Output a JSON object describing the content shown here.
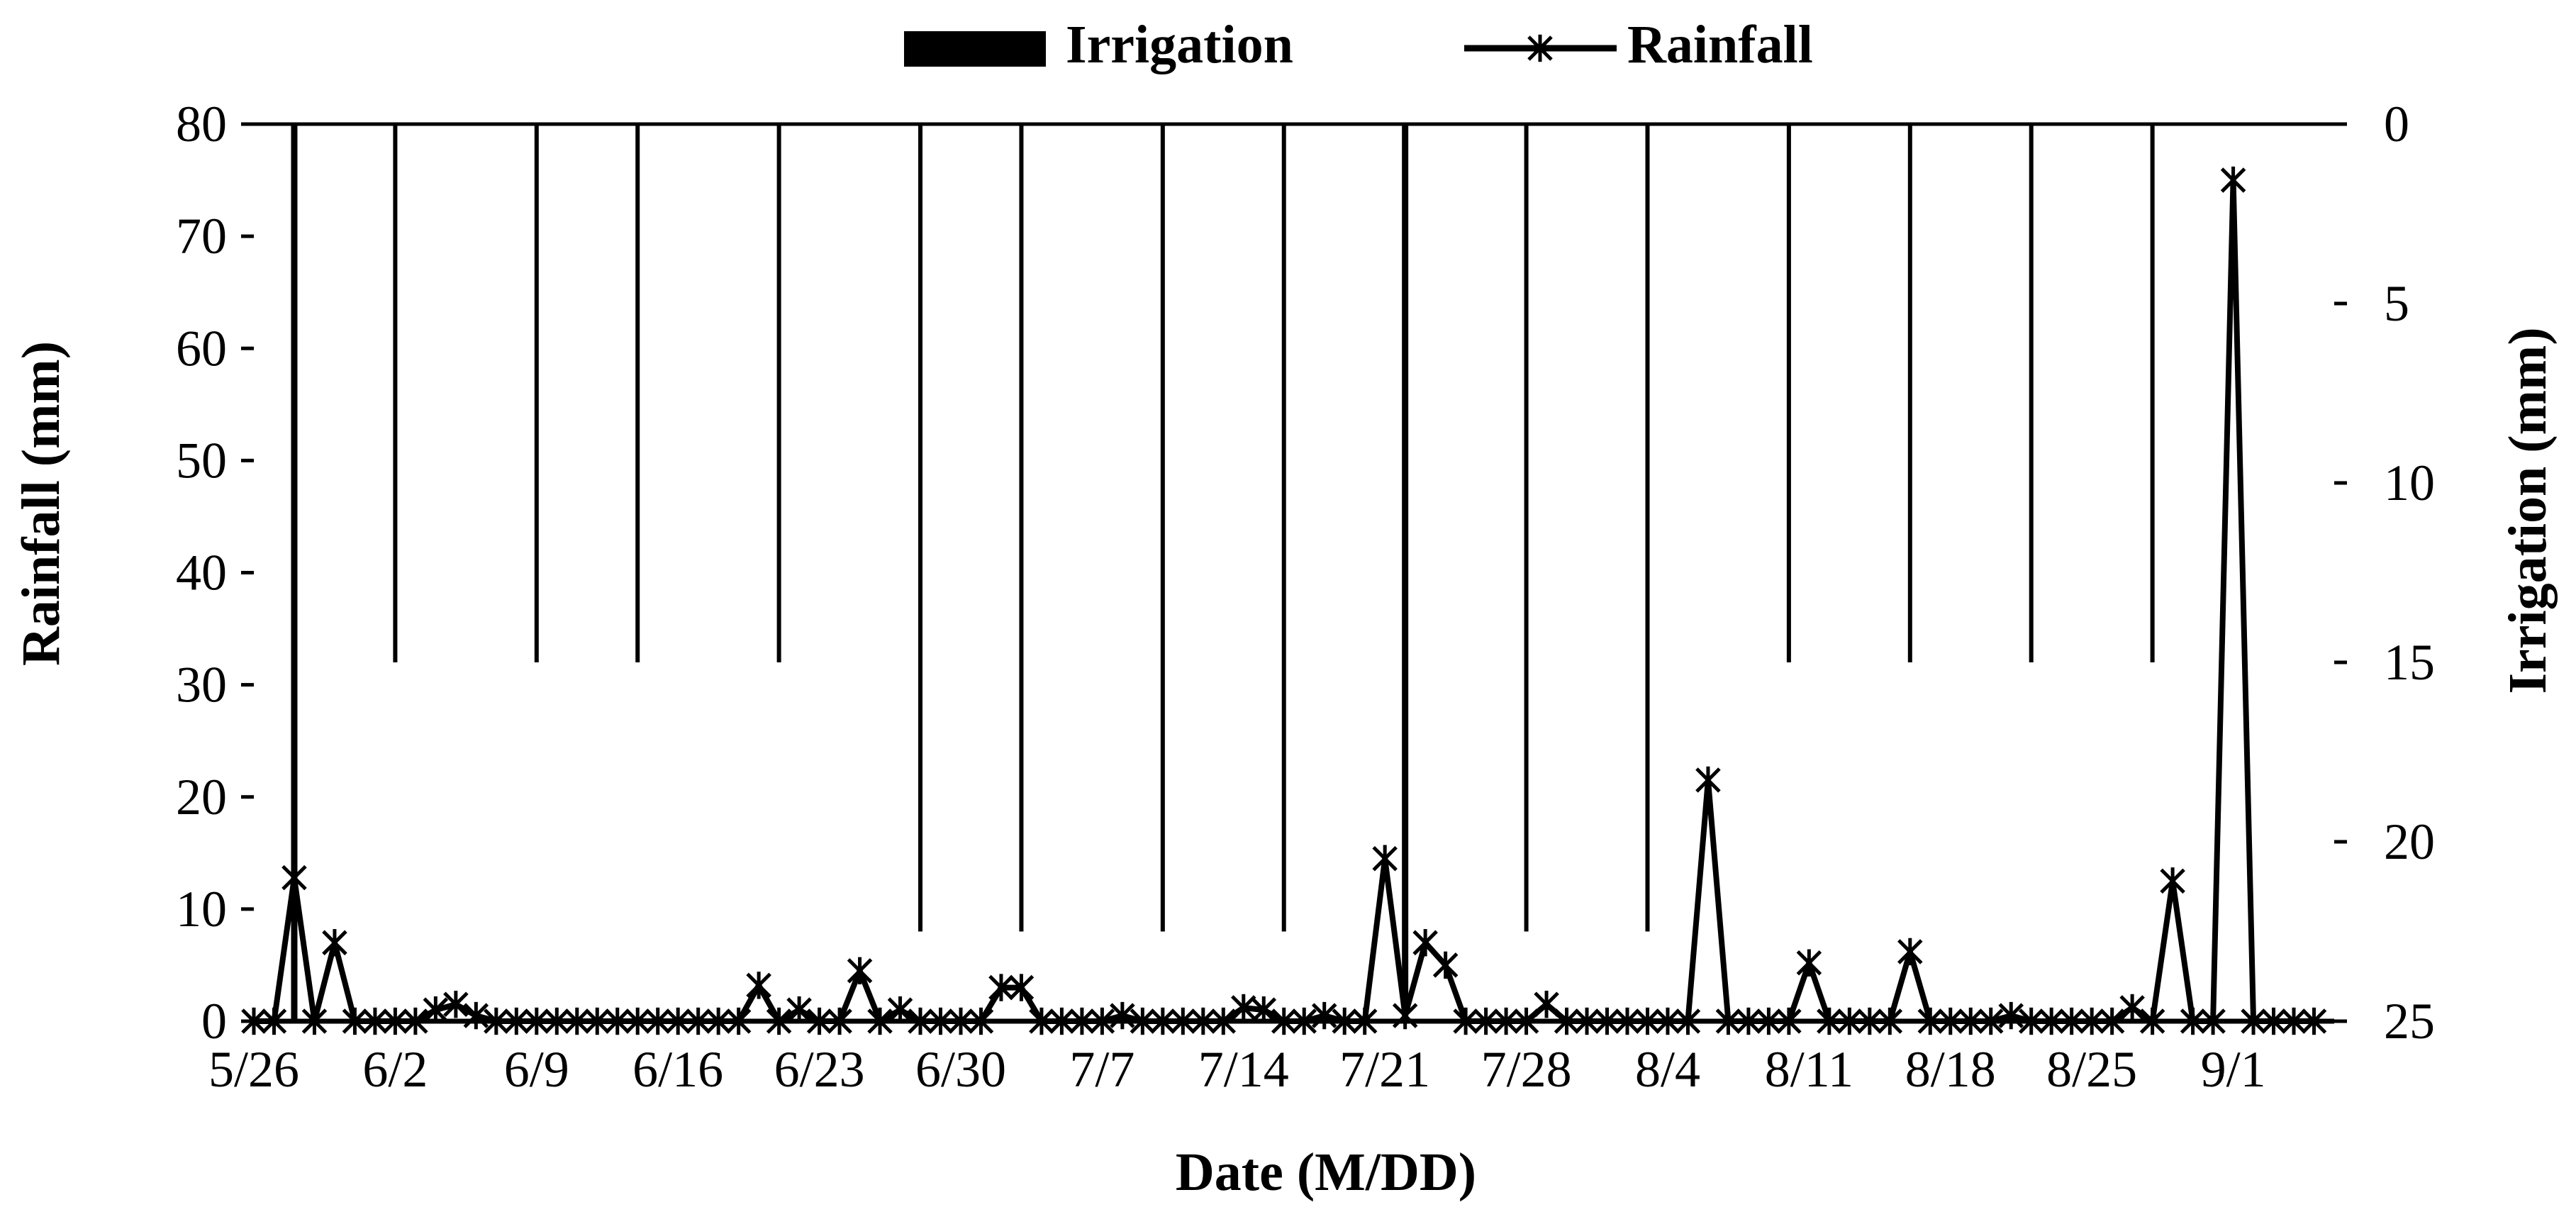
{
  "chart_data": {
    "type": "bar+line",
    "title": "",
    "xlabel": "Date (M/DD)",
    "ylabel_left": "Rainfall (mm)",
    "ylabel_right": "Irrigation (mm)",
    "ylim_left": [
      0,
      80
    ],
    "yticks_left": [
      "0",
      "10",
      "20",
      "30",
      "40",
      "50",
      "60",
      "70",
      "80"
    ],
    "ylim_right_inverted": [
      0,
      25
    ],
    "yticks_right": [
      "0",
      "5",
      "10",
      "15",
      "20",
      "25"
    ],
    "x_tick_labels": [
      "5/26",
      "6/2",
      "6/9",
      "6/16",
      "6/23",
      "6/30",
      "7/7",
      "7/14",
      "7/21",
      "7/28",
      "8/4",
      "8/11",
      "8/18",
      "8/25",
      "9/1"
    ],
    "grid": false,
    "legend": {
      "placement": "top-center",
      "entries": [
        {
          "label": "Irrigation",
          "marker": "bar"
        },
        {
          "label": "Rainfall",
          "marker": "line-star"
        }
      ]
    },
    "series": [
      {
        "name": "Irrigation",
        "kind": "bar",
        "axis": "right",
        "points": [
          {
            "x": "5/28",
            "y": 25
          },
          {
            "x": "6/2",
            "y": 15
          },
          {
            "x": "6/9",
            "y": 15
          },
          {
            "x": "6/14",
            "y": 15
          },
          {
            "x": "6/21",
            "y": 15
          },
          {
            "x": "6/28",
            "y": 22.5
          },
          {
            "x": "7/3",
            "y": 22.5
          },
          {
            "x": "7/10",
            "y": 22.5
          },
          {
            "x": "7/16",
            "y": 22.5
          },
          {
            "x": "7/22",
            "y": 25
          },
          {
            "x": "7/28",
            "y": 22.5
          },
          {
            "x": "8/3",
            "y": 22.5
          },
          {
            "x": "8/10",
            "y": 15
          },
          {
            "x": "8/16",
            "y": 15
          },
          {
            "x": "8/22",
            "y": 15
          },
          {
            "x": "8/28",
            "y": 15
          }
        ]
      },
      {
        "name": "Rainfall",
        "kind": "line",
        "axis": "left",
        "marker": "star",
        "points": [
          {
            "x": "5/26",
            "y": 0
          },
          {
            "x": "5/27",
            "y": 0
          },
          {
            "x": "5/28",
            "y": 12.8
          },
          {
            "x": "5/29",
            "y": 0
          },
          {
            "x": "5/30",
            "y": 7
          },
          {
            "x": "5/31",
            "y": 0
          },
          {
            "x": "6/1",
            "y": 0
          },
          {
            "x": "6/2",
            "y": 0
          },
          {
            "x": "6/3",
            "y": 0
          },
          {
            "x": "6/4",
            "y": 1
          },
          {
            "x": "6/5",
            "y": 1.5
          },
          {
            "x": "6/6",
            "y": 0.5
          },
          {
            "x": "6/7",
            "y": 0
          },
          {
            "x": "6/8",
            "y": 0
          },
          {
            "x": "6/9",
            "y": 0
          },
          {
            "x": "6/10",
            "y": 0
          },
          {
            "x": "6/11",
            "y": 0
          },
          {
            "x": "6/12",
            "y": 0
          },
          {
            "x": "6/13",
            "y": 0
          },
          {
            "x": "6/14",
            "y": 0
          },
          {
            "x": "6/15",
            "y": 0
          },
          {
            "x": "6/16",
            "y": 0
          },
          {
            "x": "6/17",
            "y": 0
          },
          {
            "x": "6/18",
            "y": 0
          },
          {
            "x": "6/19",
            "y": 0
          },
          {
            "x": "6/20",
            "y": 3.2
          },
          {
            "x": "6/21",
            "y": 0
          },
          {
            "x": "6/22",
            "y": 1
          },
          {
            "x": "6/23",
            "y": 0
          },
          {
            "x": "6/24",
            "y": 0
          },
          {
            "x": "6/25",
            "y": 4.5
          },
          {
            "x": "6/26",
            "y": 0
          },
          {
            "x": "6/27",
            "y": 1
          },
          {
            "x": "6/28",
            "y": 0
          },
          {
            "x": "6/29",
            "y": 0
          },
          {
            "x": "6/30",
            "y": 0
          },
          {
            "x": "7/1",
            "y": 0
          },
          {
            "x": "7/2",
            "y": 3
          },
          {
            "x": "7/3",
            "y": 3
          },
          {
            "x": "7/4",
            "y": 0
          },
          {
            "x": "7/5",
            "y": 0
          },
          {
            "x": "7/6",
            "y": 0
          },
          {
            "x": "7/7",
            "y": 0
          },
          {
            "x": "7/8",
            "y": 0.5
          },
          {
            "x": "7/9",
            "y": 0
          },
          {
            "x": "7/10",
            "y": 0
          },
          {
            "x": "7/11",
            "y": 0
          },
          {
            "x": "7/12",
            "y": 0
          },
          {
            "x": "7/13",
            "y": 0
          },
          {
            "x": "7/14",
            "y": 1.2
          },
          {
            "x": "7/15",
            "y": 1
          },
          {
            "x": "7/16",
            "y": 0
          },
          {
            "x": "7/17",
            "y": 0
          },
          {
            "x": "7/18",
            "y": 0.5
          },
          {
            "x": "7/19",
            "y": 0
          },
          {
            "x": "7/20",
            "y": 0
          },
          {
            "x": "7/21",
            "y": 14.5
          },
          {
            "x": "7/22",
            "y": 0.5
          },
          {
            "x": "7/23",
            "y": 7
          },
          {
            "x": "7/24",
            "y": 5
          },
          {
            "x": "7/25",
            "y": 0
          },
          {
            "x": "7/26",
            "y": 0
          },
          {
            "x": "7/27",
            "y": 0
          },
          {
            "x": "7/28",
            "y": 0
          },
          {
            "x": "7/29",
            "y": 1.5
          },
          {
            "x": "7/30",
            "y": 0
          },
          {
            "x": "7/31",
            "y": 0
          },
          {
            "x": "8/1",
            "y": 0
          },
          {
            "x": "8/2",
            "y": 0
          },
          {
            "x": "8/3",
            "y": 0
          },
          {
            "x": "8/4",
            "y": 0
          },
          {
            "x": "8/5",
            "y": 0
          },
          {
            "x": "8/6",
            "y": 21.5
          },
          {
            "x": "8/7",
            "y": 0
          },
          {
            "x": "8/8",
            "y": 0
          },
          {
            "x": "8/9",
            "y": 0
          },
          {
            "x": "8/10",
            "y": 0
          },
          {
            "x": "8/11",
            "y": 5.2
          },
          {
            "x": "8/12",
            "y": 0
          },
          {
            "x": "8/13",
            "y": 0
          },
          {
            "x": "8/14",
            "y": 0
          },
          {
            "x": "8/15",
            "y": 0
          },
          {
            "x": "8/16",
            "y": 6.2
          },
          {
            "x": "8/17",
            "y": 0
          },
          {
            "x": "8/18",
            "y": 0
          },
          {
            "x": "8/19",
            "y": 0
          },
          {
            "x": "8/20",
            "y": 0
          },
          {
            "x": "8/21",
            "y": 0.5
          },
          {
            "x": "8/22",
            "y": 0
          },
          {
            "x": "8/23",
            "y": 0
          },
          {
            "x": "8/24",
            "y": 0
          },
          {
            "x": "8/25",
            "y": 0
          },
          {
            "x": "8/26",
            "y": 0
          },
          {
            "x": "8/27",
            "y": 1.2
          },
          {
            "x": "8/28",
            "y": 0
          },
          {
            "x": "8/29",
            "y": 12.5
          },
          {
            "x": "8/30",
            "y": 0
          },
          {
            "x": "8/31",
            "y": 0
          },
          {
            "x": "9/1",
            "y": 75
          },
          {
            "x": "9/2",
            "y": 0
          },
          {
            "x": "9/3",
            "y": 0
          },
          {
            "x": "9/4",
            "y": 0
          },
          {
            "x": "9/5",
            "y": 0
          }
        ]
      }
    ],
    "colors": {
      "ink": "#000000",
      "background": "#ffffff"
    }
  }
}
